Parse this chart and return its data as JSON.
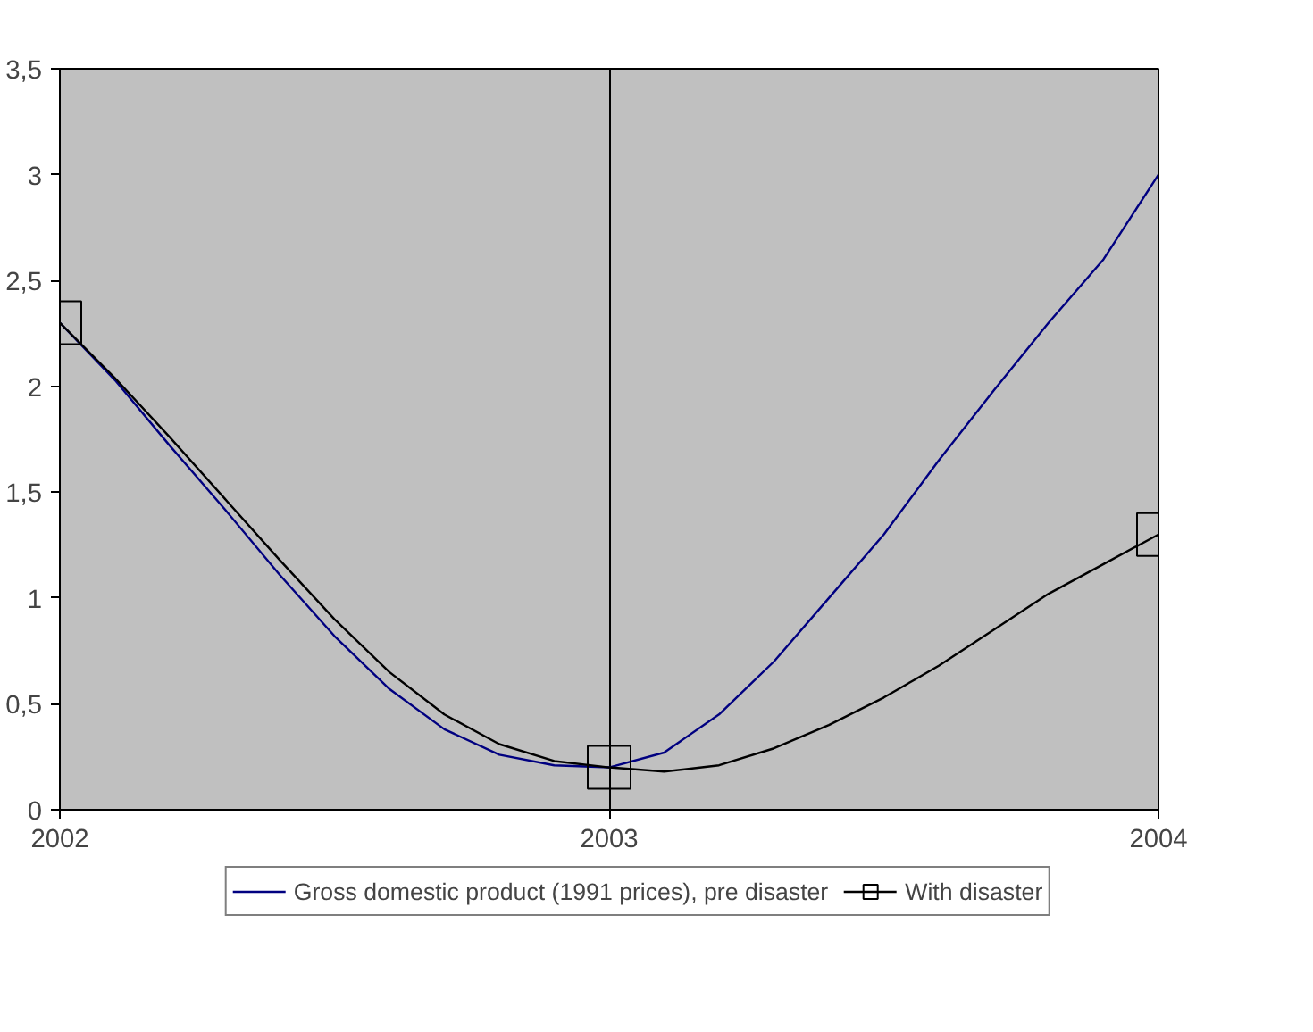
{
  "chart_data": {
    "type": "line",
    "x": [
      2002,
      2002.1,
      2002.2,
      2002.3,
      2002.4,
      2002.5,
      2002.6,
      2002.7,
      2002.8,
      2002.9,
      2003,
      2003.1,
      2003.2,
      2003.3,
      2003.4,
      2003.5,
      2003.6,
      2003.7,
      2003.8,
      2003.9,
      2004
    ],
    "series": [
      {
        "name": "Gross domestic product (1991 prices), pre disaster",
        "color": "#000080",
        "marker": "none",
        "values": [
          2.3,
          2.03,
          1.72,
          1.42,
          1.11,
          0.82,
          0.57,
          0.38,
          0.26,
          0.21,
          0.2,
          0.27,
          0.45,
          0.7,
          1.0,
          1.3,
          1.65,
          1.98,
          2.3,
          2.6,
          3.0
        ]
      },
      {
        "name": "With disaster",
        "color": "#000000",
        "values": [
          2.3,
          2.04,
          1.76,
          1.47,
          1.18,
          0.9,
          0.65,
          0.45,
          0.31,
          0.23,
          0.2,
          0.18,
          0.21,
          0.29,
          0.4,
          0.53,
          0.68,
          0.85,
          1.02,
          1.16,
          1.3
        ]
      },
      {
        "type": "scatter",
        "color": "#000000",
        "x": [
          2002,
          2003,
          2004
        ],
        "values": [
          2.3,
          0.2,
          1.3
        ],
        "marker": "square"
      }
    ],
    "xlim": [
      2002,
      2004
    ],
    "xticks": [
      2002,
      2003,
      2004
    ],
    "ylim": [
      0,
      3.5
    ],
    "yticks": [
      0,
      {
        "value": 0.5,
        "label": "0,5"
      },
      1,
      {
        "value": 1.5,
        "label": "1,5"
      },
      2,
      {
        "value": 2.5,
        "label": "2,5"
      },
      3,
      {
        "value": 3.5,
        "label": "3,5"
      }
    ],
    "grid": "x",
    "legend": "bottom",
    "line_style": "solid"
  }
}
